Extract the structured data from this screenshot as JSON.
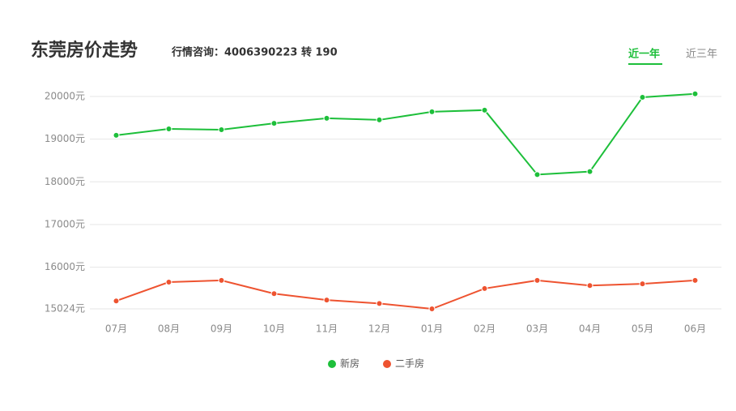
{
  "chart_data": {
    "type": "line",
    "title": "东莞房价走势",
    "subtitle": "行情咨询：4006390223 转 190",
    "tabs": [
      "近一年",
      "近三年"
    ],
    "categories": [
      "07月",
      "08月",
      "09月",
      "10月",
      "11月",
      "12月",
      "01月",
      "02月",
      "03月",
      "04月",
      "05月",
      "06月"
    ],
    "series": [
      {
        "name": "新房",
        "color": "#1dbf3a",
        "values": [
          19090,
          19240,
          19220,
          19370,
          19490,
          19450,
          19640,
          19680,
          18170,
          18240,
          19980,
          20060
        ]
      },
      {
        "name": "二手房",
        "color": "#ee5330",
        "values": [
          15210,
          15650,
          15690,
          15380,
          15230,
          15150,
          15024,
          15500,
          15690,
          15570,
          15610,
          15690
        ]
      }
    ],
    "ylim": [
      15024,
      20100
    ],
    "yticks": [
      {
        "value": 15024,
        "label": "15024元"
      },
      {
        "value": 16000,
        "label": "16000元"
      },
      {
        "value": 17000,
        "label": "17000元"
      },
      {
        "value": 18000,
        "label": "18000元"
      },
      {
        "value": 19000,
        "label": "19000元"
      },
      {
        "value": 20000,
        "label": "20000元"
      }
    ],
    "grid": true,
    "legend": "bottom"
  }
}
